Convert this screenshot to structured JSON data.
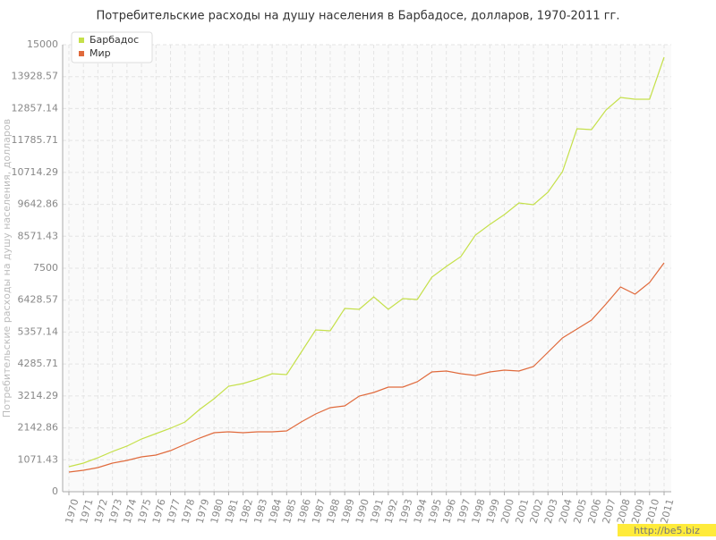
{
  "chart_data": {
    "type": "line",
    "title": "Потребительские расходы на душу населения в Барбадосе, долларов, 1970-2011 гг.",
    "y_label": "Потребительские расходы на душу населения, долларов",
    "watermark": "http://be5.biz",
    "categories": [
      "1970",
      "1971",
      "1972",
      "1973",
      "1974",
      "1975",
      "1976",
      "1977",
      "1978",
      "1979",
      "1980",
      "1981",
      "1982",
      "1983",
      "1984",
      "1985",
      "1986",
      "1987",
      "1988",
      "1989",
      "1990",
      "1991",
      "1992",
      "1993",
      "1994",
      "1995",
      "1996",
      "1997",
      "1998",
      "1999",
      "2000",
      "2001",
      "2002",
      "2003",
      "2004",
      "2005",
      "2006",
      "2007",
      "2008",
      "2009",
      "2010",
      "2011"
    ],
    "series": [
      {
        "name": "Барбадос",
        "color": "#c5e04a",
        "values": [
          840,
          960,
          1140,
          1350,
          1530,
          1770,
          1950,
          2130,
          2340,
          2760,
          3120,
          3540,
          3630,
          3780,
          3960,
          3930,
          4680,
          5430,
          5400,
          6150,
          6120,
          6540,
          6120,
          6480,
          6450,
          7200,
          7560,
          7890,
          8610,
          8970,
          9300,
          9690,
          9630,
          10050,
          10740,
          12180,
          12150,
          12810,
          13230,
          13170,
          13170,
          14580
        ]
      },
      {
        "name": "Мир",
        "color": "#e06a3c",
        "values": [
          660,
          720,
          810,
          960,
          1050,
          1170,
          1230,
          1380,
          1590,
          1800,
          1980,
          2010,
          1980,
          2010,
          2010,
          2040,
          2340,
          2610,
          2820,
          2880,
          3210,
          3330,
          3510,
          3510,
          3690,
          4020,
          4050,
          3960,
          3900,
          4020,
          4080,
          4050,
          4200,
          4680,
          5160,
          5460,
          5760,
          6300,
          6870,
          6630,
          7020,
          7680
        ]
      }
    ],
    "ylim": [
      0,
      15000
    ],
    "yticks": [
      0,
      1071.43,
      2142.86,
      3214.29,
      4285.71,
      5357.14,
      6428.57,
      7500,
      8571.43,
      9642.86,
      10714.29,
      11785.71,
      12857.14,
      13928.57,
      15000
    ],
    "grid": true,
    "legend": "top-left"
  }
}
